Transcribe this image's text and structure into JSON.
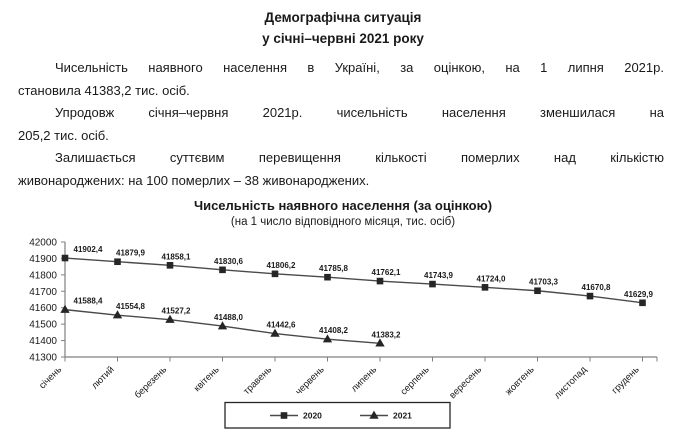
{
  "document": {
    "title_line1": "Демографічна ситуація",
    "title_line2": "у січні–червні 2021 року",
    "paragraphs": [
      {
        "lines": [
          "Чисельність наявного населення в Україні, за оцінкою, на 1 липня 2021р.",
          "становила 41383,2 тис. осіб."
        ]
      },
      {
        "lines": [
          "Упродовж січня–червня 2021р. чисельність населення зменшилася на",
          "205,2 тис. осіб."
        ]
      },
      {
        "lines": [
          "Залишається суттєвим перевищення кількості померлих над кількістю",
          "живонароджених: на 100 померлих – 38 живонароджених."
        ]
      }
    ]
  },
  "chart_data": {
    "type": "line",
    "title": "Чисельність наявного населення (за оцінкою)",
    "subtitle": "(на 1 число відповідного місяця, тис. осіб)",
    "categories": [
      "січень",
      "лютий",
      "березень",
      "квітень",
      "травень",
      "червень",
      "липень",
      "серпень",
      "вересень",
      "жовтень",
      "листопад",
      "грудень"
    ],
    "series": [
      {
        "name": "2020",
        "marker": "square",
        "values": [
          41902.4,
          41879.9,
          41858.1,
          41830.6,
          41806.2,
          41785.8,
          41762.1,
          41743.9,
          41724.0,
          41703.3,
          41670.8,
          41629.9
        ]
      },
      {
        "name": "2021",
        "marker": "triangle",
        "values": [
          41588.4,
          41554.8,
          41527.2,
          41488.0,
          41442.6,
          41408.2,
          41383.2
        ]
      }
    ],
    "ylim": [
      41300,
      42000
    ],
    "ytick_step": 100,
    "grid": false,
    "legend_position": "bottom",
    "decimal_separator": ",",
    "data_labels": true
  },
  "colors": {
    "text": "#1a1a1a",
    "axis": "#808080",
    "series_line": "#4a4a4a",
    "marker": "#262626",
    "legend_border": "#262626",
    "background": "#ffffff"
  }
}
